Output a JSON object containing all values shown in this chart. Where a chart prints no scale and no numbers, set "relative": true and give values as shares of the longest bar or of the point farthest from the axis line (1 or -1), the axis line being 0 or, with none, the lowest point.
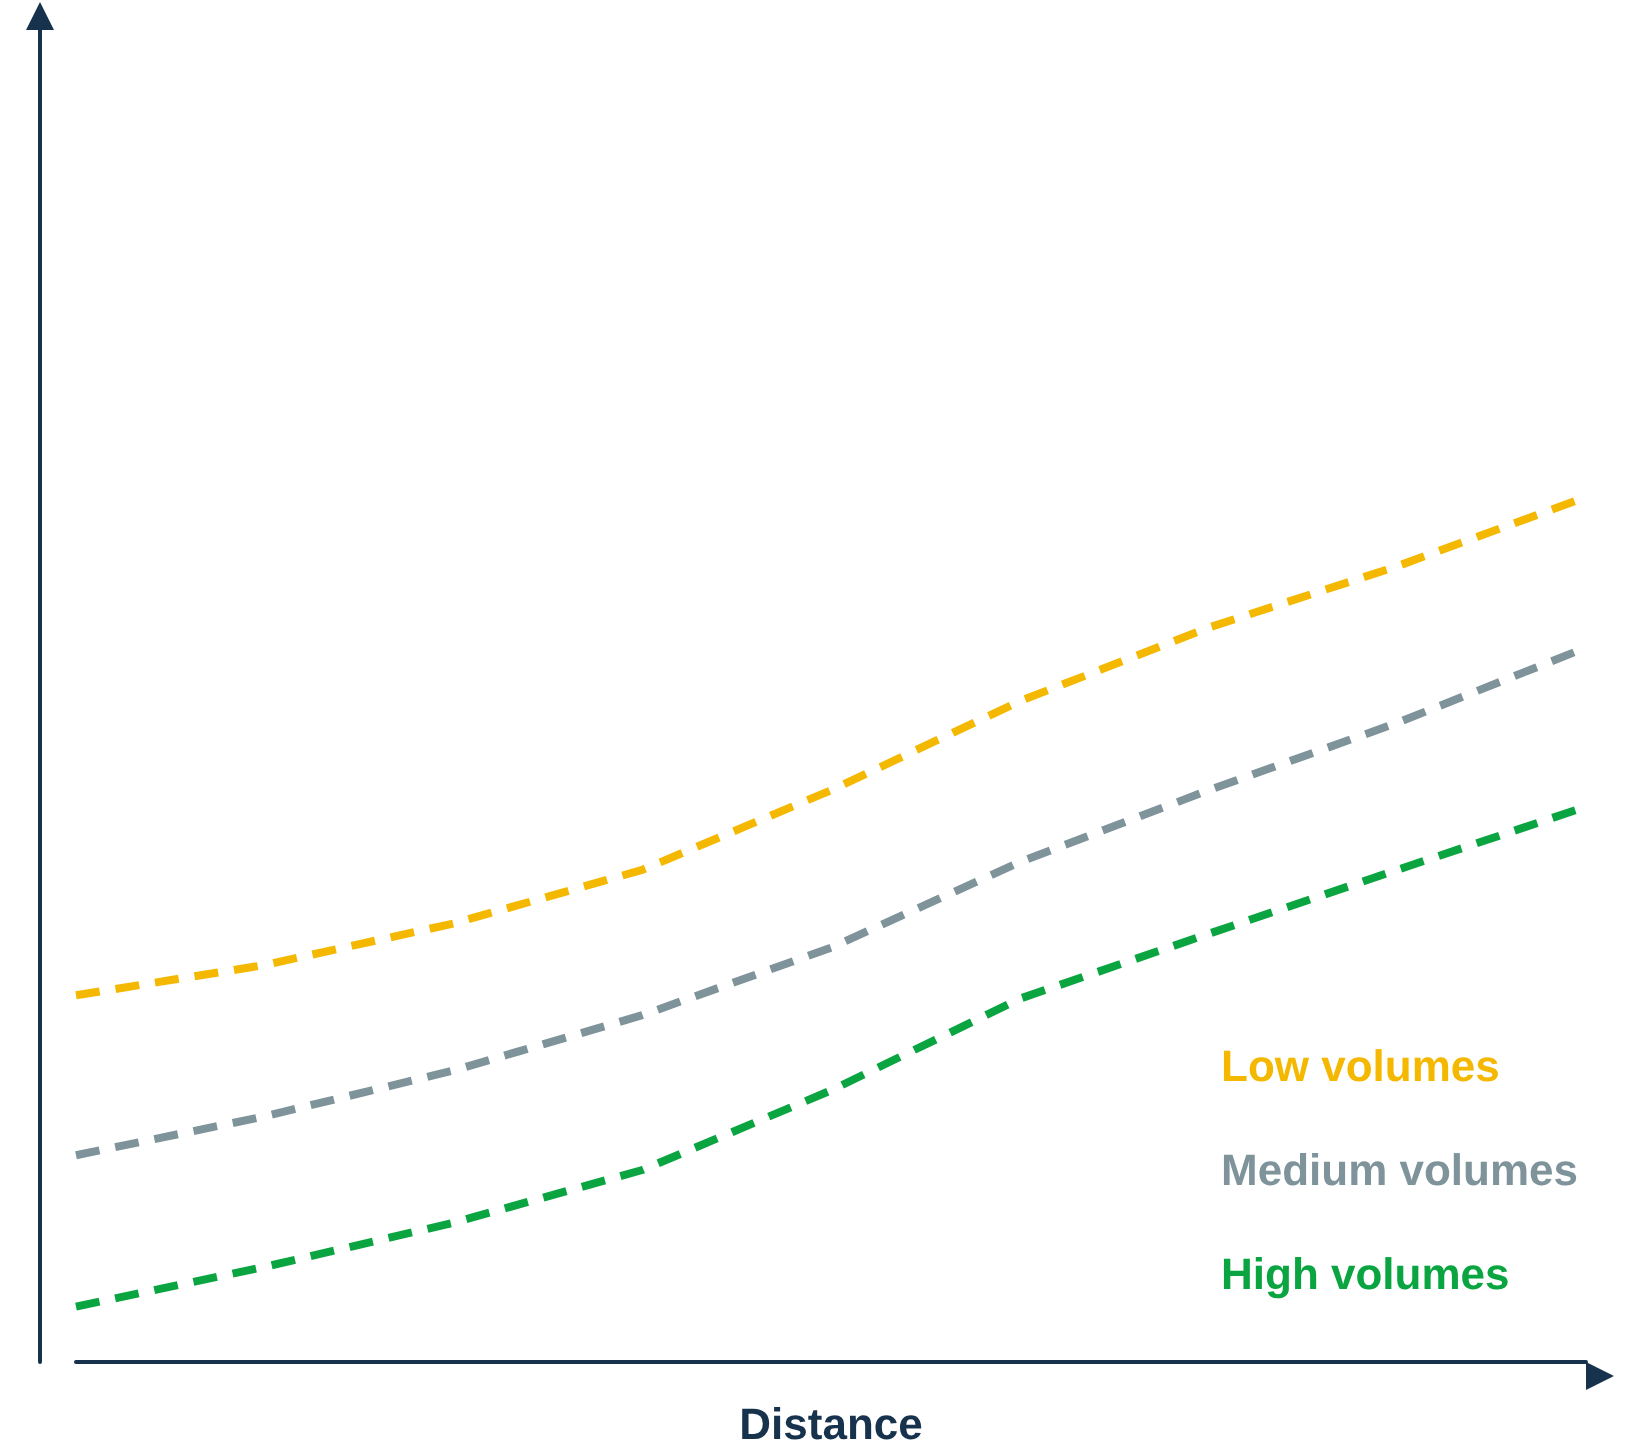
{
  "chart_data": {
    "type": "line",
    "relative": true,
    "xlabel": "Distance",
    "line_style": "dashed",
    "marker": "none",
    "grid": false,
    "legend": "bottom right",
    "categories": [
      null,
      null,
      null,
      null,
      null,
      null,
      null,
      null,
      null
    ],
    "series": [
      {
        "name": "Low volumes",
        "color": "#f5b800",
        "values": [
          0.424,
          0.459,
          0.507,
          0.569,
          0.661,
          0.764,
          0.849,
          0.92,
          1
        ]
      },
      {
        "name": "Medium volumes",
        "color": "#7f939b",
        "values": [
          0.239,
          0.284,
          0.337,
          0.401,
          0.479,
          0.578,
          0.661,
          0.739,
          0.826
        ]
      },
      {
        "name": "High volumes",
        "color": "#0aa540",
        "values": [
          0.064,
          0.11,
          0.161,
          0.222,
          0.314,
          0.42,
          0.495,
          0.569,
          0.642
        ]
      }
    ]
  }
}
